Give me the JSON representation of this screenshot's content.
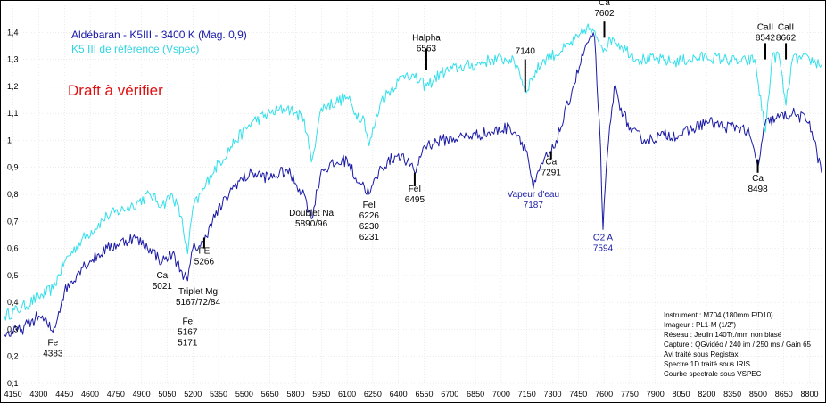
{
  "chart_data": {
    "type": "line",
    "xlim": [
      4100,
      8870
    ],
    "ylim": [
      0.1,
      1.5
    ],
    "x_ticks": [
      4150,
      4300,
      4450,
      4600,
      4750,
      4900,
      5050,
      5200,
      5350,
      5500,
      5650,
      5800,
      5950,
      6100,
      6250,
      6400,
      6550,
      6700,
      6850,
      7000,
      7150,
      7300,
      7450,
      7600,
      7750,
      7900,
      8050,
      8200,
      8350,
      8500,
      8650,
      8800
    ],
    "x_tick_labels": [
      "4150",
      "4300",
      "4450",
      "4600",
      "4750",
      "4900",
      "5050",
      "5200",
      "5350",
      "5500",
      "5650",
      "5800",
      "5950",
      "6100",
      "6250",
      "6400",
      "6550",
      "6700",
      "6850",
      "7000",
      "7150",
      "7300",
      "7450",
      "7600",
      "7750",
      "7900",
      "8050",
      "8200",
      "8350",
      "8500",
      "8650",
      "8800"
    ],
    "y_ticks": [
      0.1,
      0.2,
      0.3,
      0.4,
      0.5,
      0.6,
      0.7,
      0.8,
      0.9,
      1.0,
      1.1,
      1.2,
      1.3,
      1.4
    ],
    "y_tick_labels": [
      "0,1",
      "0,2",
      "0,3",
      "0,4",
      "0,5",
      "0,6",
      "0,7",
      "0,8",
      "0,9",
      "1",
      "1,1",
      "1,2",
      "1,3",
      "1,4"
    ],
    "series": [
      {
        "name": "Aldébaran - K5III - 3400 K (Mag. 0,9)",
        "color": "#1a1aa6",
        "x": [
          4100,
          4200,
          4300,
          4350,
          4383,
          4450,
          4550,
          4700,
          4850,
          4950,
          5021,
          5080,
          5130,
          5169,
          5200,
          5266,
          5300,
          5450,
          5550,
          5650,
          5750,
          5800,
          5850,
          5892,
          5950,
          6100,
          6150,
          6200,
          6229,
          6300,
          6400,
          6450,
          6495,
          6550,
          6650,
          6750,
          6850,
          6950,
          7050,
          7100,
          7150,
          7187,
          7250,
          7291,
          7350,
          7420,
          7500,
          7545,
          7580,
          7594,
          7620,
          7660,
          7700,
          7760,
          7850,
          7950,
          8050,
          8200,
          8300,
          8400,
          8450,
          8498,
          8540,
          8600,
          8700,
          8800,
          8870
        ],
        "y": [
          0.28,
          0.3,
          0.35,
          0.32,
          0.29,
          0.44,
          0.53,
          0.6,
          0.64,
          0.6,
          0.55,
          0.58,
          0.52,
          0.48,
          0.6,
          0.62,
          0.69,
          0.84,
          0.88,
          0.86,
          0.89,
          0.84,
          0.8,
          0.71,
          0.89,
          0.93,
          0.86,
          0.83,
          0.8,
          0.9,
          0.95,
          0.92,
          0.88,
          0.98,
          1.0,
          1.01,
          1.02,
          1.03,
          1.05,
          1.02,
          0.96,
          0.82,
          0.93,
          0.95,
          1.05,
          1.2,
          1.36,
          1.38,
          0.97,
          0.67,
          0.95,
          1.2,
          1.12,
          1.03,
          1.0,
          1.02,
          1.02,
          1.07,
          1.05,
          1.05,
          1.02,
          0.9,
          1.06,
          1.08,
          1.1,
          1.07,
          0.88
        ]
      },
      {
        "name": "K5 III de référence (Vspec)",
        "color": "#33e0ea",
        "x": [
          4100,
          4200,
          4300,
          4383,
          4450,
          4550,
          4700,
          4850,
          4950,
          5021,
          5080,
          5130,
          5169,
          5200,
          5266,
          5300,
          5450,
          5550,
          5650,
          5750,
          5800,
          5850,
          5892,
          5950,
          6100,
          6150,
          6200,
          6229,
          6300,
          6400,
          6450,
          6495,
          6563,
          6650,
          6750,
          6850,
          6950,
          7050,
          7100,
          7140,
          7187,
          7250,
          7350,
          7450,
          7500,
          7560,
          7602,
          7650,
          7700,
          7800,
          7900,
          8000,
          8100,
          8200,
          8300,
          8400,
          8480,
          8542,
          8580,
          8620,
          8662,
          8700,
          8800,
          8870
        ],
        "y": [
          0.35,
          0.38,
          0.42,
          0.45,
          0.55,
          0.63,
          0.72,
          0.76,
          0.8,
          0.76,
          0.8,
          0.72,
          0.58,
          0.75,
          0.82,
          0.87,
          1.0,
          1.07,
          1.1,
          1.12,
          1.1,
          1.08,
          0.92,
          1.12,
          1.16,
          1.1,
          1.08,
          0.98,
          1.15,
          1.22,
          1.25,
          1.23,
          1.2,
          1.25,
          1.27,
          1.28,
          1.3,
          1.3,
          1.27,
          1.18,
          1.24,
          1.3,
          1.33,
          1.38,
          1.42,
          1.38,
          1.34,
          1.38,
          1.35,
          1.3,
          1.3,
          1.29,
          1.3,
          1.31,
          1.3,
          1.29,
          1.3,
          1.03,
          1.3,
          1.32,
          1.13,
          1.3,
          1.3,
          1.28
        ]
      }
    ],
    "legend": [
      {
        "label": "Aldébaran - K5III - 3400 K (Mag. 0,9)",
        "color": "#1a1aa6"
      },
      {
        "label": "K5 III de référence (Vspec)",
        "color": "#33e0ea"
      }
    ],
    "draft_label": "Draft à vérifier",
    "annotations": [
      {
        "lines": [
          "Fe",
          "4383"
        ],
        "x": 4383,
        "y": 0.24,
        "color": "#000000",
        "tick": false
      },
      {
        "lines": [
          "Ca",
          "5021"
        ],
        "x": 5021,
        "y": 0.49,
        "color": "#000000",
        "tick": false
      },
      {
        "lines": [
          "Triplet  Mg",
          "5167/72/84"
        ],
        "x": 5230,
        "y": 0.43,
        "color": "#000000",
        "tick": false
      },
      {
        "lines": [
          "Fe",
          "5167",
          "5171"
        ],
        "x": 5169,
        "y": 0.32,
        "color": "#000000",
        "tick": false
      },
      {
        "lines": [
          "FE",
          "5266"
        ],
        "x": 5266,
        "y": 0.58,
        "color": "#000000",
        "tick": true,
        "tick_y": [
          0.6,
          0.64
        ]
      },
      {
        "lines": [
          "Doublet Na",
          "5890/96"
        ],
        "x": 5892,
        "y": 0.72,
        "color": "#000000",
        "tick": false
      },
      {
        "lines": [
          "FeI",
          "6226",
          "6230",
          "6231"
        ],
        "x": 6229,
        "y": 0.75,
        "color": "#000000",
        "tick": false
      },
      {
        "lines": [
          "FeI",
          "6495"
        ],
        "x": 6495,
        "y": 0.81,
        "color": "#000000",
        "tick": true,
        "tick_y": [
          0.83,
          0.88
        ]
      },
      {
        "lines": [
          "Halpha",
          "6563"
        ],
        "x": 6563,
        "y": 1.37,
        "color": "#000000",
        "tick": true,
        "tick_y": [
          1.26,
          1.34
        ]
      },
      {
        "lines": [
          "7140"
        ],
        "x": 7140,
        "y": 1.32,
        "color": "#000000",
        "tick": true,
        "tick_y": [
          1.18,
          1.3
        ]
      },
      {
        "lines": [
          "Vapeur d'eau",
          "7187"
        ],
        "x": 7187,
        "y": 0.79,
        "color": "#1a1aa6",
        "tick": false
      },
      {
        "lines": [
          "Ca",
          "7291"
        ],
        "x": 7291,
        "y": 0.91,
        "color": "#000000",
        "tick": true,
        "tick_y": [
          0.93,
          0.96
        ]
      },
      {
        "lines": [
          "O2 A",
          "7594"
        ],
        "x": 7594,
        "y": 0.63,
        "color": "#1a1aa6",
        "tick": false
      },
      {
        "lines": [
          "Ca",
          "7602"
        ],
        "x": 7602,
        "y": 1.5,
        "color": "#000000",
        "tick": true,
        "tick_y": [
          1.38,
          1.44
        ]
      },
      {
        "lines": [
          "Ca",
          "8498"
        ],
        "x": 8498,
        "y": 0.85,
        "color": "#000000",
        "tick": true,
        "tick_y": [
          0.88,
          0.93
        ]
      },
      {
        "lines": [
          "CaII",
          "8542"
        ],
        "x": 8542,
        "y": 1.41,
        "color": "#000000",
        "tick": true,
        "tick_y": [
          1.3,
          1.36
        ]
      },
      {
        "lines": [
          "CaII",
          "8662"
        ],
        "x": 8662,
        "y": 1.41,
        "color": "#000000",
        "tick": true,
        "tick_y": [
          1.3,
          1.36
        ]
      }
    ],
    "info_lines": [
      "Instrument : M704 (180mm F/D10)",
      "Imageur : PL1-M (1/2\")",
      "Réseau : Jeulin 140Tr./mm non blasé",
      "Capture : QGvidéo / 240 im / 250 ms / Gain 65",
      "Avi traité sous Registax",
      "Spectre 1D traité sous IRIS",
      "Courbe spectrale sous VSPEC"
    ]
  }
}
